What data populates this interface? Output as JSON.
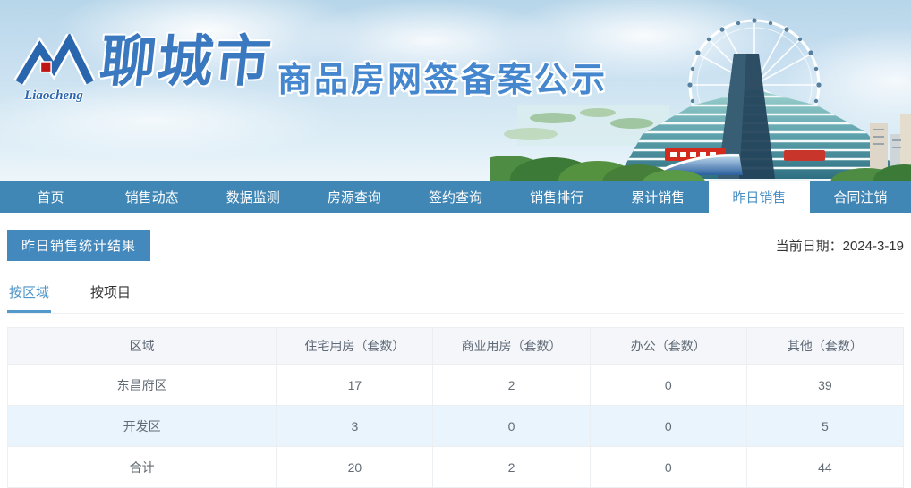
{
  "banner": {
    "logo_script": "Liaocheng",
    "title_calligraphy": "聊城市",
    "title_main": "商品房网签备案公示"
  },
  "nav": {
    "items": [
      {
        "label": "首页",
        "active": false
      },
      {
        "label": "销售动态",
        "active": false
      },
      {
        "label": "数据监测",
        "active": false
      },
      {
        "label": "房源查询",
        "active": false
      },
      {
        "label": "签约查询",
        "active": false
      },
      {
        "label": "销售排行",
        "active": false
      },
      {
        "label": "累计销售",
        "active": false
      },
      {
        "label": "昨日销售",
        "active": true
      },
      {
        "label": "合同注销",
        "active": false
      }
    ]
  },
  "content": {
    "section_title": "昨日销售统计结果",
    "date_label": "当前日期：",
    "date_value": "2024-3-19",
    "tabs": [
      {
        "label": "按区域",
        "active": true
      },
      {
        "label": "按项目",
        "active": false
      }
    ]
  },
  "table": {
    "headers": [
      "区域",
      "住宅用房（套数）",
      "商业用房（套数）",
      "办公（套数）",
      "其他（套数）"
    ],
    "rows": [
      {
        "cells": [
          "东昌府区",
          "17",
          "2",
          "0",
          "39"
        ]
      },
      {
        "cells": [
          "开发区",
          "3",
          "0",
          "0",
          "5"
        ]
      },
      {
        "cells": [
          "合计",
          "20",
          "2",
          "0",
          "44"
        ]
      }
    ]
  },
  "colors": {
    "nav_blue": "#4187b6",
    "badge_blue": "#4389bd",
    "active_tab_text": "#4e96c8",
    "row_alt_blue": "#e9f4fc",
    "table_header_bg": "#f4f6f9",
    "banner_title_blue": "#4587ce"
  }
}
